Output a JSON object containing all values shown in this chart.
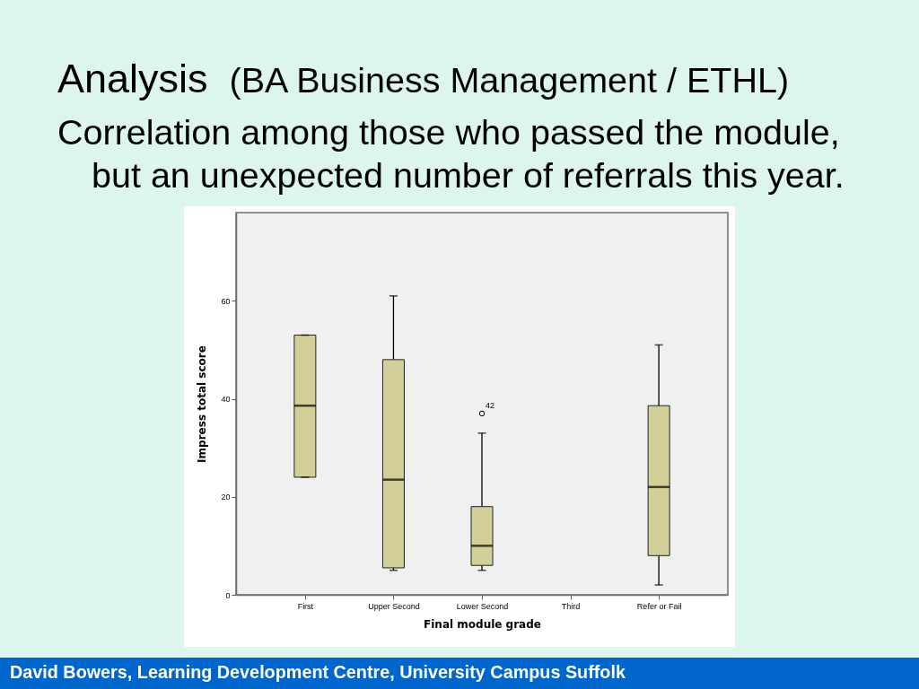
{
  "chart_data": {
    "type": "box",
    "title": "Analysis",
    "subtitle": "(BA Business Management / ETHL)",
    "xlabel": "Final module grade",
    "ylabel": "Impress total score",
    "categories": [
      "First",
      "Upper Second",
      "Lower Second",
      "Third",
      "Refer or Fail"
    ],
    "series": [
      {
        "color": "#d3cf99",
        "boxes": [
          {
            "low": 24,
            "q1": 24,
            "median": 38.6,
            "q3": 53,
            "high": 53
          },
          {
            "low": 5,
            "q1": 5.5,
            "median": 23.5,
            "q3": 48,
            "high": 61
          },
          {
            "low": 5,
            "q1": 6,
            "median": 10,
            "q3": 18,
            "high": 33,
            "outliers": [
              37
            ]
          },
          null,
          {
            "low": 2,
            "q1": 8,
            "median": 22,
            "q3": 38.6,
            "high": 51
          }
        ]
      }
    ],
    "ylim": [
      0,
      78
    ],
    "yticks": [
      0,
      20,
      40,
      60
    ],
    "annotations": [
      "Correlation among those who passed the module, but an unexpected number of referrals this year.",
      "42",
      "David Bowers, Learning Development Centre, University Campus Suffolk"
    ]
  }
}
